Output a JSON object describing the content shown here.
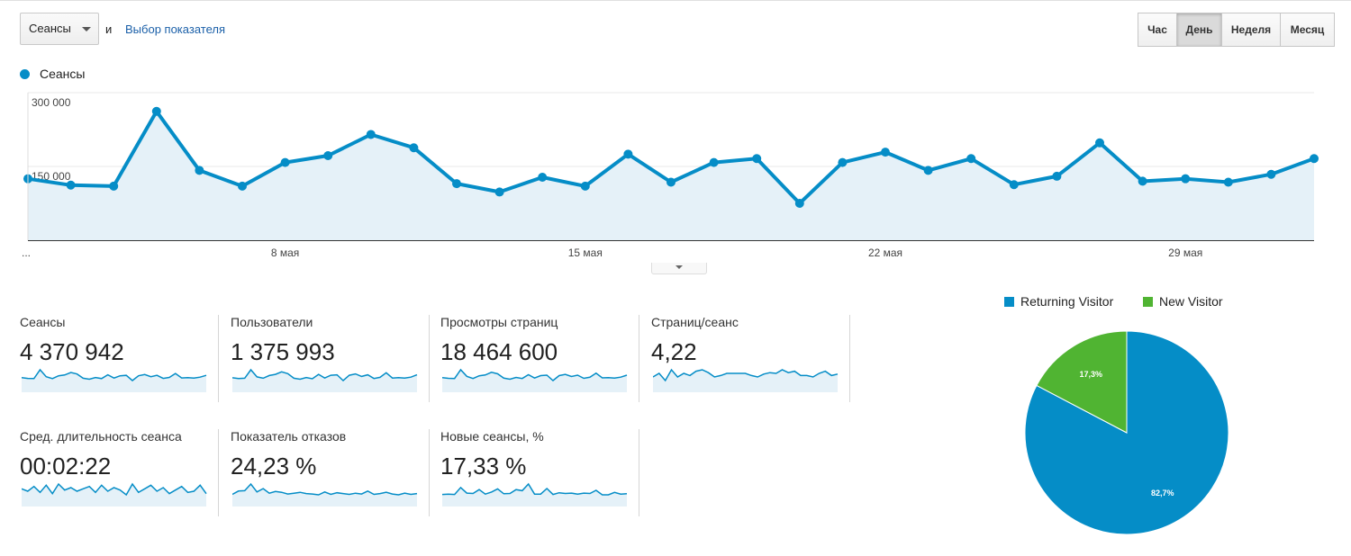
{
  "controls": {
    "metric_select": "Сеансы",
    "and_text": "и",
    "metric_link": "Выбор показателя",
    "periods": [
      {
        "label": "Час",
        "active": false
      },
      {
        "label": "День",
        "active": true
      },
      {
        "label": "Неделя",
        "active": false
      },
      {
        "label": "Месяц",
        "active": false
      }
    ]
  },
  "chart_data": [
    {
      "type": "area",
      "series": [
        {
          "name": "Сеансы",
          "color": "#058dc7",
          "values": [
            125000,
            112000,
            110000,
            262000,
            142000,
            110000,
            158000,
            172000,
            215000,
            188000,
            115000,
            98000,
            128000,
            110000,
            175000,
            118000,
            158000,
            166000,
            75000,
            158000,
            179000,
            142000,
            166000,
            113000,
            130000,
            198000,
            120000,
            125000,
            118000,
            134000,
            166000
          ]
        }
      ],
      "ylim": [
        0,
        300000
      ],
      "yticks": [
        "300 000",
        "150 000"
      ],
      "xticks": [
        {
          "index": 6,
          "label": "8 мая"
        },
        {
          "index": 13,
          "label": "15 мая"
        },
        {
          "index": 20,
          "label": "22 мая"
        },
        {
          "index": 27,
          "label": "29 мая"
        }
      ],
      "x_start_label": "...",
      "grid": true
    },
    {
      "type": "pie",
      "slices": [
        {
          "label": "Returning Visitor",
          "value": 82.7,
          "display": "82,7%",
          "color": "#058dc7"
        },
        {
          "label": "New Visitor",
          "value": 17.3,
          "display": "17,3%",
          "color": "#50b432"
        }
      ],
      "legend": "top"
    }
  ],
  "metrics": [
    {
      "label": "Сеансы",
      "value": "4 370 942",
      "spark": [
        125,
        112,
        110,
        262,
        142,
        110,
        158,
        172,
        215,
        188,
        115,
        98,
        128,
        110,
        175,
        118,
        158,
        166,
        75,
        158,
        179,
        142,
        166,
        113,
        130,
        198,
        120,
        125,
        118,
        134,
        166
      ]
    },
    {
      "label": "Пользователи",
      "value": "1 375 993",
      "spark": [
        40,
        37,
        38,
        75,
        44,
        38,
        50,
        55,
        66,
        58,
        38,
        34,
        41,
        36,
        55,
        39,
        51,
        53,
        28,
        51,
        57,
        46,
        53,
        37,
        42,
        62,
        39,
        41,
        39,
        43,
        53
      ]
    },
    {
      "label": "Просмотры страниц",
      "value": "18 464 600",
      "spark": [
        520,
        480,
        470,
        1050,
        610,
        470,
        650,
        700,
        880,
        780,
        490,
        420,
        540,
        470,
        720,
        500,
        660,
        690,
        330,
        660,
        740,
        600,
        690,
        480,
        550,
        820,
        510,
        530,
        500,
        560,
        690
      ]
    },
    {
      "label": "Страниц/сеанс",
      "value": "4,22",
      "spark": [
        4.2,
        4.25,
        4.15,
        4.3,
        4.2,
        4.25,
        4.22,
        4.28,
        4.3,
        4.26,
        4.2,
        4.22,
        4.25,
        4.25,
        4.25,
        4.25,
        4.22,
        4.2,
        4.24,
        4.26,
        4.25,
        4.3,
        4.26,
        4.28,
        4.22,
        4.22,
        4.2,
        4.25,
        4.28,
        4.22,
        4.24
      ]
    },
    {
      "label": "Сред. длительность сеанса",
      "value": "00:02:22",
      "spark": [
        142,
        140,
        144,
        139,
        145,
        138,
        146,
        141,
        143,
        140,
        142,
        144,
        139,
        145,
        140,
        143,
        141,
        137,
        146,
        139,
        142,
        145,
        140,
        143,
        138,
        141,
        144,
        139,
        140,
        145,
        138
      ]
    },
    {
      "label": "Показатель отказов",
      "value": "24,23 %",
      "spark": [
        24.0,
        24.8,
        24.9,
        26.5,
        24.6,
        25.4,
        24.3,
        24.7,
        24.5,
        24.1,
        24.3,
        24.5,
        24.2,
        24.1,
        23.9,
        24.6,
        24.0,
        24.4,
        24.2,
        24.0,
        24.3,
        24.1,
        24.8,
        24.0,
        24.2,
        24.5,
        24.1,
        23.9,
        24.3,
        24.0,
        24.2
      ]
    },
    {
      "label": "Новые сеансы, %",
      "value": "17,33 %",
      "spark": [
        16.8,
        16.9,
        16.8,
        18.8,
        17.2,
        17.1,
        18.2,
        16.9,
        17.5,
        18.4,
        17.0,
        17.1,
        18.2,
        17.9,
        19.8,
        16.9,
        16.9,
        18.5,
        16.8,
        17.3,
        17.1,
        17.2,
        16.9,
        17.2,
        17.1,
        18.0,
        16.7,
        16.7,
        17.4,
        16.9,
        17.0
      ]
    }
  ]
}
